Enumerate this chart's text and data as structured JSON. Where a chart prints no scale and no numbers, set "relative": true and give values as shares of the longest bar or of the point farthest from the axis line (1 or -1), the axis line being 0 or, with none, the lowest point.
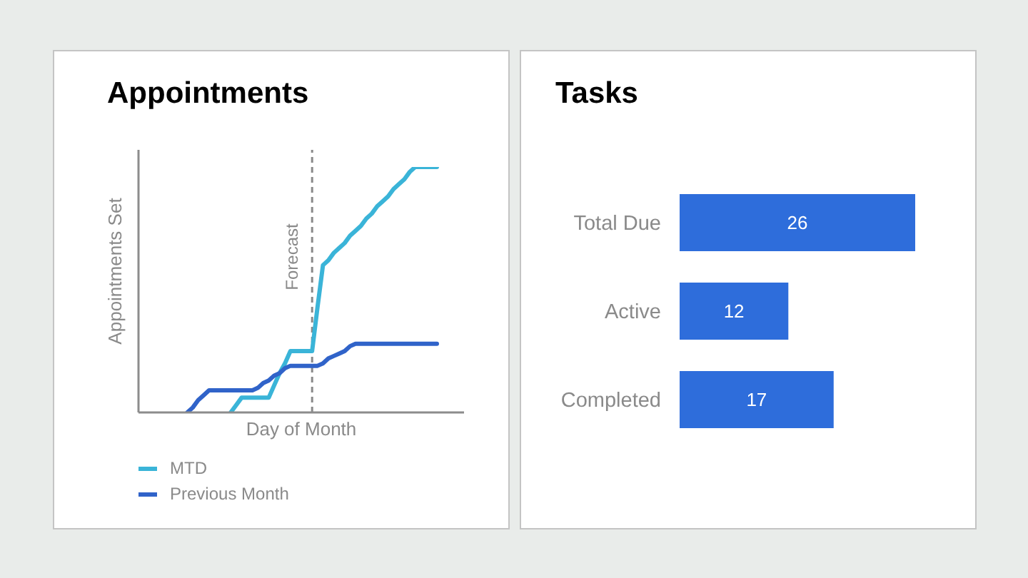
{
  "chart_data": [
    {
      "type": "line",
      "title": "Appointments",
      "xlabel": "Day of Month",
      "ylabel": "Appointments Set",
      "categories": [
        null,
        null,
        null,
        null,
        null,
        null,
        null,
        null,
        null,
        null,
        null,
        null,
        null,
        null,
        null,
        null,
        null,
        null,
        null,
        null,
        null,
        null,
        null,
        null,
        null,
        null,
        null,
        null,
        null,
        null,
        null,
        null,
        null,
        null,
        null,
        null,
        null,
        null,
        null,
        null,
        null,
        null,
        null,
        null,
        null,
        null,
        null,
        null,
        null,
        null,
        null,
        null,
        null,
        null,
        null,
        null,
        null,
        null,
        null,
        null,
        null
      ],
      "relative": true,
      "series": [
        {
          "name": "MTD",
          "color": "#3ab4d8",
          "values": [
            null,
            null,
            null,
            null,
            null,
            null,
            null,
            null,
            null,
            null,
            null,
            null,
            null,
            null,
            null,
            null,
            null,
            0,
            0.03,
            0.06,
            0.06,
            0.06,
            0.06,
            0.06,
            0.06,
            0.11,
            0.16,
            0.2,
            0.25,
            0.25,
            0.25,
            0.25,
            0.25,
            0.43,
            0.6,
            0.62,
            0.65,
            0.67,
            0.69,
            0.72,
            0.74,
            0.76,
            0.79,
            0.81,
            0.84,
            0.86,
            0.88,
            0.91,
            0.93,
            0.95,
            0.98,
            1,
            1,
            1,
            1,
            1,
            null,
            null,
            null,
            null,
            null
          ]
        },
        {
          "name": "Previous Month",
          "color": "#3063c9",
          "values": [
            null,
            null,
            null,
            null,
            null,
            null,
            null,
            null,
            null,
            0,
            0.02,
            0.05,
            0.07,
            0.09,
            0.09,
            0.09,
            0.09,
            0.09,
            0.09,
            0.09,
            0.09,
            0.09,
            0.1,
            0.12,
            0.13,
            0.15,
            0.16,
            0.18,
            0.19,
            0.19,
            0.19,
            0.19,
            0.19,
            0.19,
            0.2,
            0.22,
            0.23,
            0.24,
            0.25,
            0.27,
            0.28,
            0.28,
            0.28,
            0.28,
            0.28,
            0.28,
            0.28,
            0.28,
            0.28,
            0.28,
            0.28,
            0.28,
            0.28,
            0.28,
            0.28,
            0.28,
            null,
            null,
            null,
            null,
            null
          ]
        }
      ],
      "annotations": [
        "Forecast"
      ],
      "legend": "bottom left",
      "marker": "none",
      "line_style": "solid",
      "tick_labels": false
    },
    {
      "type": "bar",
      "title": "Tasks",
      "orientation": "horizontal",
      "categories": [
        "Total Due",
        "Active",
        "Completed"
      ],
      "values": [
        26,
        12,
        17
      ],
      "color": "#2e6ddb",
      "data_labels": true,
      "tick_labels": "y"
    }
  ]
}
